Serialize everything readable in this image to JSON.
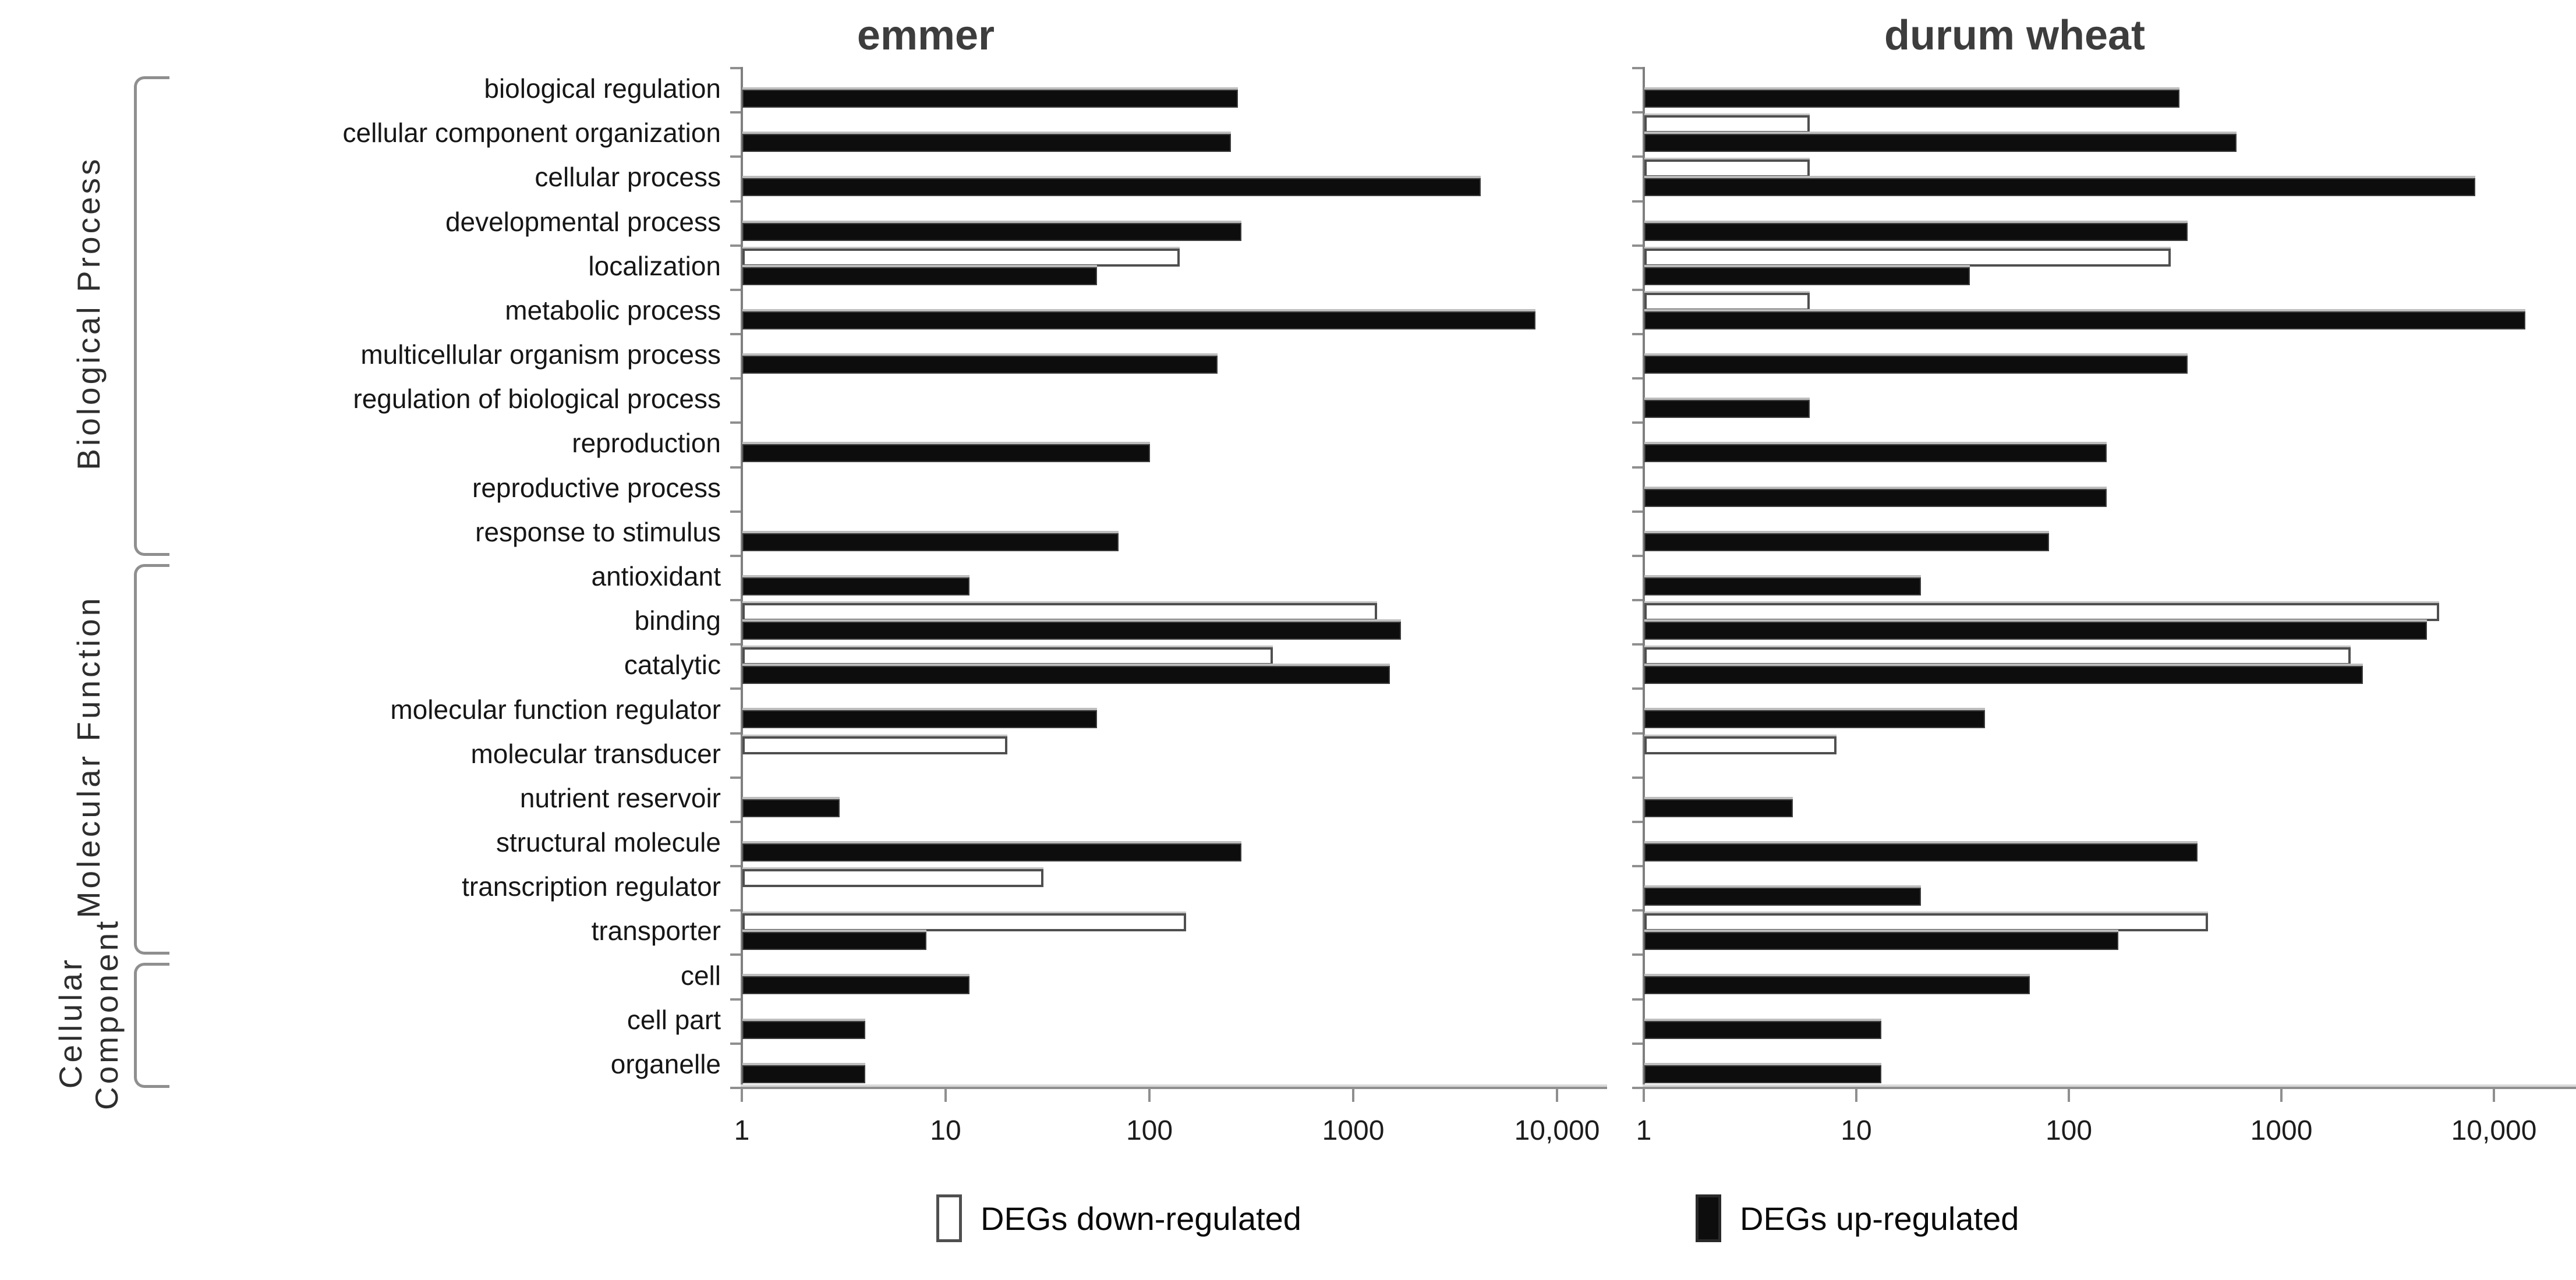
{
  "chart_data": {
    "type": "bar",
    "orientation": "horizontal",
    "x_scale": "log",
    "grid": false,
    "legend_position": "bottom",
    "x_tick_labels": [
      "1",
      "10",
      "100",
      "1000",
      "10,000"
    ],
    "x_tick_values": [
      1,
      10,
      100,
      1000,
      10000
    ],
    "xlim": [
      1,
      20000
    ],
    "categories": [
      "biological regulation",
      "cellular component organization",
      "cellular process",
      "developmental process",
      "localization",
      "metabolic process",
      "multicellular organism process",
      "regulation of biological process",
      "reproduction",
      "reproductive process",
      "response to stimulus",
      "antioxidant",
      "binding",
      "catalytic",
      "molecular function regulator",
      "molecular transducer",
      "nutrient reservoir",
      "structural molecule",
      "transcription regulator",
      "transporter",
      "cell",
      "cell part",
      "organelle"
    ],
    "category_groups": [
      {
        "label": "Biological Process",
        "start": 0,
        "end": 10
      },
      {
        "label": "Molecular Function",
        "start": 11,
        "end": 19
      },
      {
        "label": "Cellular Component",
        "start": 20,
        "end": 22
      }
    ],
    "legend": [
      {
        "label": "DEGs down-regulated",
        "fill": "#ffffff"
      },
      {
        "label": "DEGs up-regulated",
        "fill": "#0d0d0d"
      }
    ],
    "charts": [
      {
        "title": "emmer",
        "series": [
          {
            "name": "DEGs down-regulated",
            "values": [
              null,
              null,
              null,
              null,
              140,
              null,
              null,
              null,
              null,
              null,
              null,
              null,
              1300,
              400,
              null,
              20,
              null,
              null,
              30,
              150,
              null,
              null,
              null
            ]
          },
          {
            "name": "DEGs up-regulated",
            "values": [
              270,
              250,
              4200,
              280,
              55,
              7800,
              215,
              null,
              100,
              null,
              70,
              13,
              1700,
              1500,
              55,
              null,
              3,
              280,
              null,
              8,
              13,
              4,
              4
            ]
          }
        ]
      },
      {
        "title": "durum wheat",
        "series": [
          {
            "name": "DEGs down-regulated",
            "values": [
              null,
              6,
              6,
              null,
              300,
              6,
              null,
              null,
              null,
              null,
              null,
              null,
              5500,
              2100,
              null,
              8,
              null,
              null,
              null,
              450,
              null,
              null,
              null
            ]
          },
          {
            "name": "DEGs up-regulated",
            "values": [
              330,
              610,
              8100,
              360,
              34,
              14000,
              360,
              6,
              150,
              150,
              80,
              20,
              4800,
              2400,
              40,
              null,
              5,
              400,
              20,
              170,
              65,
              13,
              13
            ]
          }
        ]
      }
    ],
    "colors": {
      "bar_up": "#0d0d0d",
      "bar_down": "#ffffff",
      "axis": "#8f8f8f",
      "title": "#3d3d3d",
      "label": "#161616"
    }
  }
}
